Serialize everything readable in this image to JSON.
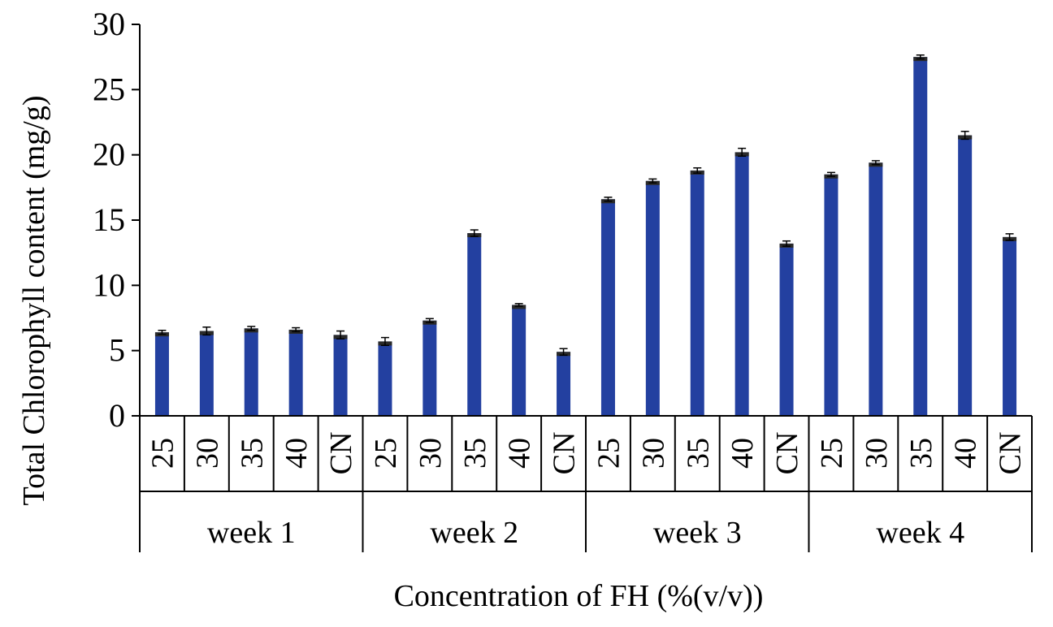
{
  "chart_data": {
    "type": "bar",
    "title": "",
    "xlabel": "Concentration of FH (%(v/v))",
    "ylabel": "Total Chlorophyll content (mg/g)",
    "ylim": [
      0,
      30
    ],
    "yticks": [
      "0",
      "5",
      "10",
      "15",
      "20",
      "25",
      "30"
    ],
    "grid": false,
    "legend": "none",
    "groups": [
      {
        "label": "week 1",
        "categories": [
          "25",
          "30",
          "35",
          "40",
          "CN"
        ],
        "values": [
          6.4,
          6.5,
          6.7,
          6.6,
          6.2
        ],
        "errors": [
          0.15,
          0.3,
          0.15,
          0.15,
          0.3
        ]
      },
      {
        "label": "week 2",
        "categories": [
          "25",
          "30",
          "35",
          "40",
          "CN"
        ],
        "values": [
          5.7,
          7.3,
          14.0,
          8.5,
          4.9
        ],
        "errors": [
          0.3,
          0.15,
          0.25,
          0.1,
          0.25
        ]
      },
      {
        "label": "week 3",
        "categories": [
          "25",
          "30",
          "35",
          "40",
          "CN"
        ],
        "values": [
          16.6,
          18.0,
          18.8,
          20.2,
          13.2
        ],
        "errors": [
          0.15,
          0.15,
          0.2,
          0.3,
          0.2
        ]
      },
      {
        "label": "week 4",
        "categories": [
          "25",
          "30",
          "35",
          "40",
          "CN"
        ],
        "values": [
          18.5,
          19.4,
          27.5,
          21.5,
          13.7
        ],
        "errors": [
          0.15,
          0.15,
          0.15,
          0.3,
          0.25
        ]
      }
    ],
    "colors": {
      "bar": "#2340a0",
      "bar_cap": "#2a2a2a",
      "axis": "#000000",
      "error": "#000000"
    }
  }
}
